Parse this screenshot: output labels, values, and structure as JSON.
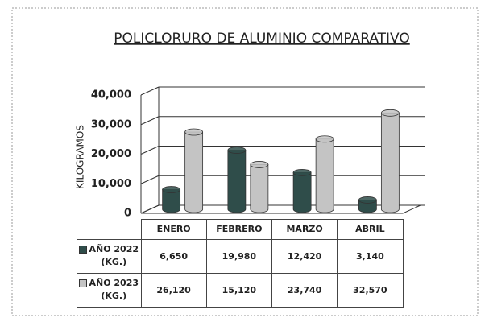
{
  "chart_data": {
    "type": "bar3d",
    "title": "POLICLORURO DE ALUMINIO COMPARATIVO",
    "y_label": "KILOGRAMOS",
    "categories": [
      "ENERO",
      "FEBRERO",
      "MARZO",
      "ABRIL"
    ],
    "series": [
      {
        "name": "AÑO 2022 (KG.)",
        "color": "#2f4d4a",
        "values": [
          6650,
          19980,
          12420,
          3140
        ],
        "value_labels": [
          "6,650",
          "19,980",
          "12,420",
          "3,140"
        ]
      },
      {
        "name": "AÑO 2023 (KG.)",
        "color": "#c4c4c4",
        "values": [
          26120,
          15120,
          23740,
          32570
        ],
        "value_labels": [
          "26,120",
          "15,120",
          "23,740",
          "32,570"
        ]
      }
    ],
    "ylim": [
      0,
      40000
    ],
    "yticks": [
      0,
      {
        "value": 10000,
        "label": "10,000"
      },
      {
        "value": 20000,
        "label": "20,000"
      },
      {
        "value": 30000,
        "label": "30,000"
      },
      {
        "value": 40000,
        "label": "40,000"
      }
    ],
    "grid": true
  }
}
